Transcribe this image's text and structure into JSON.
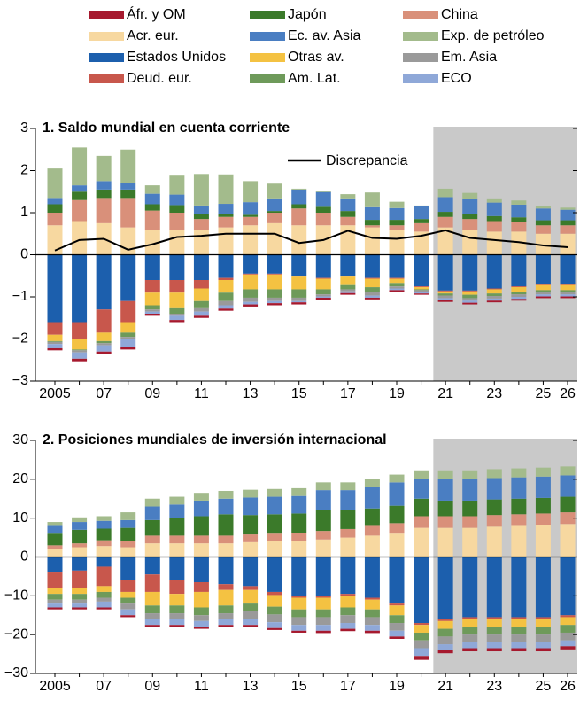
{
  "chart_data": [
    {
      "type": "bar",
      "stacked": true,
      "title": "1. Saldo mundial en cuenta corriente",
      "categories": [
        "2005",
        null,
        "07",
        null,
        "09",
        null,
        "11",
        null,
        "13",
        null,
        "15",
        null,
        "17",
        null,
        "19",
        null,
        "21",
        null,
        "23",
        null,
        "25",
        "26"
      ],
      "shade_start": "21",
      "ylim": [
        -3,
        3
      ],
      "yticks": [
        {
          "value": -3,
          "label": "−3"
        },
        {
          "value": -2,
          "label": "−2"
        },
        {
          "value": -1,
          "label": "−1"
        },
        0,
        1,
        2,
        3
      ],
      "series": [
        {
          "name": "Áfr. y OM",
          "color": "#a6192e",
          "values": [
            -0.05,
            -0.06,
            -0.05,
            -0.05,
            -0.05,
            -0.05,
            -0.05,
            -0.05,
            -0.05,
            -0.05,
            -0.05,
            -0.05,
            -0.04,
            -0.04,
            -0.04,
            -0.03,
            -0.04,
            -0.04,
            -0.04,
            -0.04,
            -0.04,
            -0.04
          ]
        },
        {
          "name": "Japón",
          "color": "#3b7a2a",
          "values": [
            0.2,
            0.2,
            0.2,
            0.2,
            0.15,
            0.18,
            0.12,
            0.06,
            0.05,
            0.04,
            0.1,
            0.14,
            0.14,
            0.13,
            0.13,
            0.1,
            0.12,
            0.12,
            0.12,
            0.12,
            0.12,
            0.12
          ]
        },
        {
          "name": "China",
          "color": "#d9907a",
          "values": [
            0.3,
            0.5,
            0.6,
            0.7,
            0.45,
            0.4,
            0.25,
            0.25,
            0.2,
            0.25,
            0.4,
            0.3,
            0.2,
            0.05,
            0.1,
            0.2,
            0.25,
            0.25,
            0.25,
            0.22,
            0.2,
            0.2
          ]
        },
        {
          "name": "Acr. eur.",
          "color": "#f7d8a0",
          "values": [
            0.7,
            0.8,
            0.75,
            0.65,
            0.6,
            0.6,
            0.6,
            0.65,
            0.7,
            0.75,
            0.7,
            0.7,
            0.7,
            0.65,
            0.6,
            0.55,
            0.65,
            0.6,
            0.55,
            0.55,
            0.5,
            0.5
          ]
        },
        {
          "name": "Ec. av. Asia",
          "color": "#4a7ec2",
          "values": [
            0.15,
            0.15,
            0.2,
            0.15,
            0.25,
            0.25,
            0.2,
            0.25,
            0.3,
            0.3,
            0.35,
            0.35,
            0.3,
            0.3,
            0.28,
            0.3,
            0.35,
            0.35,
            0.32,
            0.3,
            0.28,
            0.25
          ]
        },
        {
          "name": "Exp. de petróleo",
          "color": "#a3bb8c",
          "values": [
            0.7,
            0.9,
            0.6,
            0.8,
            0.2,
            0.45,
            0.75,
            0.7,
            0.5,
            0.35,
            0.02,
            0.02,
            0.1,
            0.35,
            0.15,
            0.02,
            0.2,
            0.15,
            0.1,
            0.1,
            0.05,
            0.05
          ]
        },
        {
          "name": "Estados Unidos",
          "color": "#1c5fad",
          "values": [
            -1.6,
            -1.6,
            -1.3,
            -1.1,
            -0.6,
            -0.6,
            -0.6,
            -0.55,
            -0.45,
            -0.45,
            -0.5,
            -0.55,
            -0.5,
            -0.55,
            -0.55,
            -0.75,
            -0.85,
            -0.85,
            -0.8,
            -0.75,
            -0.7,
            -0.7
          ]
        },
        {
          "name": "Otras av.",
          "color": "#f4c242",
          "values": [
            -0.15,
            -0.25,
            -0.2,
            -0.25,
            -0.3,
            -0.35,
            -0.3,
            -0.3,
            -0.35,
            -0.35,
            -0.3,
            -0.25,
            -0.2,
            -0.2,
            -0.1,
            -0.05,
            -0.05,
            -0.08,
            -0.1,
            -0.12,
            -0.12,
            -0.12
          ]
        },
        {
          "name": "Em. Asia",
          "color": "#9a9a9a",
          "values": [
            -0.05,
            -0.05,
            -0.05,
            -0.05,
            -0.05,
            -0.05,
            -0.1,
            -0.1,
            -0.1,
            -0.08,
            -0.08,
            -0.05,
            -0.05,
            -0.08,
            -0.05,
            -0.05,
            -0.06,
            -0.06,
            -0.06,
            -0.06,
            -0.05,
            -0.05
          ]
        },
        {
          "name": "Deud. eur.",
          "color": "#c8574c",
          "values": [
            -0.3,
            -0.4,
            -0.55,
            -0.5,
            -0.3,
            -0.3,
            -0.2,
            -0.05,
            -0.02,
            -0.02,
            -0.02,
            -0.02,
            -0.02,
            -0.02,
            -0.02,
            -0.02,
            -0.02,
            -0.02,
            -0.02,
            -0.02,
            -0.02,
            -0.02
          ]
        },
        {
          "name": "Am. Lat.",
          "color": "#6e9a5a",
          "values": [
            -0.02,
            -0.02,
            -0.05,
            -0.1,
            -0.1,
            -0.15,
            -0.15,
            -0.2,
            -0.2,
            -0.2,
            -0.2,
            -0.12,
            -0.1,
            -0.12,
            -0.08,
            -0.02,
            -0.05,
            -0.08,
            -0.06,
            -0.05,
            -0.05,
            -0.05
          ]
        },
        {
          "name": "ECO",
          "color": "#8fa8d8",
          "values": [
            -0.1,
            -0.15,
            -0.15,
            -0.2,
            -0.05,
            -0.1,
            -0.1,
            -0.08,
            -0.06,
            -0.05,
            -0.03,
            -0.03,
            -0.04,
            -0.05,
            -0.04,
            -0.03,
            -0.05,
            -0.05,
            -0.05,
            -0.05,
            -0.05,
            -0.05
          ]
        }
      ],
      "lines": [
        {
          "name": "Discrepancia",
          "color": "#000000",
          "values": [
            0.1,
            0.35,
            0.38,
            0.12,
            0.25,
            0.42,
            0.45,
            0.5,
            0.5,
            0.5,
            0.28,
            0.35,
            0.57,
            0.4,
            0.38,
            0.45,
            0.58,
            0.4,
            0.35,
            0.3,
            0.22,
            0.18
          ]
        }
      ]
    },
    {
      "type": "bar",
      "stacked": true,
      "title": "2. Posiciones mundiales de inversión internacional",
      "categories": [
        "2005",
        null,
        "07",
        null,
        "09",
        null,
        "11",
        null,
        "13",
        null,
        "15",
        null,
        "17",
        null,
        "19",
        null,
        "21",
        null,
        "23",
        null,
        "25",
        "26"
      ],
      "shade_start": "21",
      "ylim": [
        -30,
        30
      ],
      "yticks": [
        {
          "value": -30,
          "label": "−30"
        },
        {
          "value": -20,
          "label": "−20"
        },
        {
          "value": -10,
          "label": "−10"
        },
        0,
        10,
        20,
        30
      ],
      "series": [
        {
          "values": [
            -0.5,
            -0.5,
            -0.5,
            -0.5,
            -0.5,
            -0.5,
            -0.5,
            -0.5,
            -0.5,
            -0.5,
            -0.5,
            -0.6,
            -0.6,
            -0.6,
            -0.6,
            -1,
            -0.8,
            -0.8,
            -0.8,
            -0.8,
            -0.8,
            -0.8
          ]
        },
        {
          "values": [
            3,
            3.5,
            3,
            3.5,
            4,
            4.5,
            5,
            5.5,
            5,
            5,
            5,
            5.5,
            5,
            4.5,
            4.5,
            4.5,
            4,
            4,
            4,
            4,
            4,
            4
          ]
        },
        {
          "values": [
            1,
            1,
            1.5,
            1.5,
            2,
            2,
            2,
            2,
            2,
            2,
            2.2,
            2.2,
            2.2,
            2.5,
            2.7,
            3,
            3,
            3,
            3,
            3,
            3,
            3
          ]
        },
        {
          "values": [
            2,
            2.5,
            2.8,
            2.5,
            3.5,
            3.5,
            3.5,
            3.5,
            3.8,
            4,
            4,
            4.5,
            5,
            5.5,
            6,
            7.5,
            7.5,
            7.5,
            7.8,
            8,
            8.2,
            8.5
          ]
        },
        {
          "values": [
            2,
            2,
            2,
            2,
            3.5,
            3.5,
            4,
            4,
            4.5,
            4.5,
            4.5,
            5,
            5,
            5.5,
            6,
            5,
            5.5,
            5.5,
            5.5,
            5.5,
            5.5,
            5.5
          ]
        },
        {
          "values": [
            1,
            1.2,
            1.2,
            2,
            2,
            2,
            2,
            2,
            2,
            2,
            2,
            2,
            2,
            2,
            2,
            2.3,
            2.3,
            2.3,
            2.3,
            2.3,
            2.3,
            2.3
          ]
        },
        {
          "values": [
            -4,
            -3.5,
            -2.5,
            -6,
            -4.5,
            -6,
            -6.5,
            -7,
            -7.5,
            -9,
            -10,
            -10,
            -9.5,
            -10.5,
            -12,
            -17,
            -16,
            -15.5,
            -15.5,
            -15.5,
            -15.5,
            -15
          ]
        },
        {
          "values": [
            -1.5,
            -1.5,
            -1.5,
            -1.5,
            -3.5,
            -3,
            -4,
            -4,
            -3.5,
            -3,
            -3,
            -3,
            -3,
            -2.5,
            -2.5,
            -2,
            -2,
            -2,
            -2,
            -2,
            -2,
            -2
          ]
        },
        {
          "values": [
            -1,
            -1,
            -1,
            -1.5,
            -1.5,
            -1.5,
            -1.5,
            -1.5,
            -2,
            -2,
            -2,
            -2,
            -2,
            -2,
            -2,
            -2,
            -2,
            -2,
            -2,
            -2,
            -2,
            -2
          ]
        },
        {
          "values": [
            -4,
            -4.5,
            -5,
            -3,
            -4.5,
            -3.5,
            -2.5,
            -1.5,
            -1,
            -0.8,
            -0.5,
            -0.5,
            -0.5,
            -0.5,
            -0.5,
            -0.5,
            -0.5,
            -0.5,
            -0.5,
            -0.5,
            -0.5,
            -0.5
          ]
        },
        {
          "values": [
            -1.5,
            -1.5,
            -1.5,
            -1.5,
            -2,
            -2,
            -2,
            -2,
            -2,
            -2,
            -2,
            -2,
            -2,
            -2,
            -2,
            -2,
            -2,
            -2,
            -2,
            -2,
            -2,
            -2
          ]
        },
        {
          "values": [
            -1,
            -1,
            -1.5,
            -1.5,
            -1.5,
            -1.5,
            -1.5,
            -1.5,
            -1.5,
            -1.5,
            -1.5,
            -1.5,
            -1.5,
            -1.5,
            -1.5,
            -2,
            -1.5,
            -1.5,
            -1.5,
            -1.5,
            -1.5,
            -1.5
          ]
        }
      ]
    }
  ]
}
